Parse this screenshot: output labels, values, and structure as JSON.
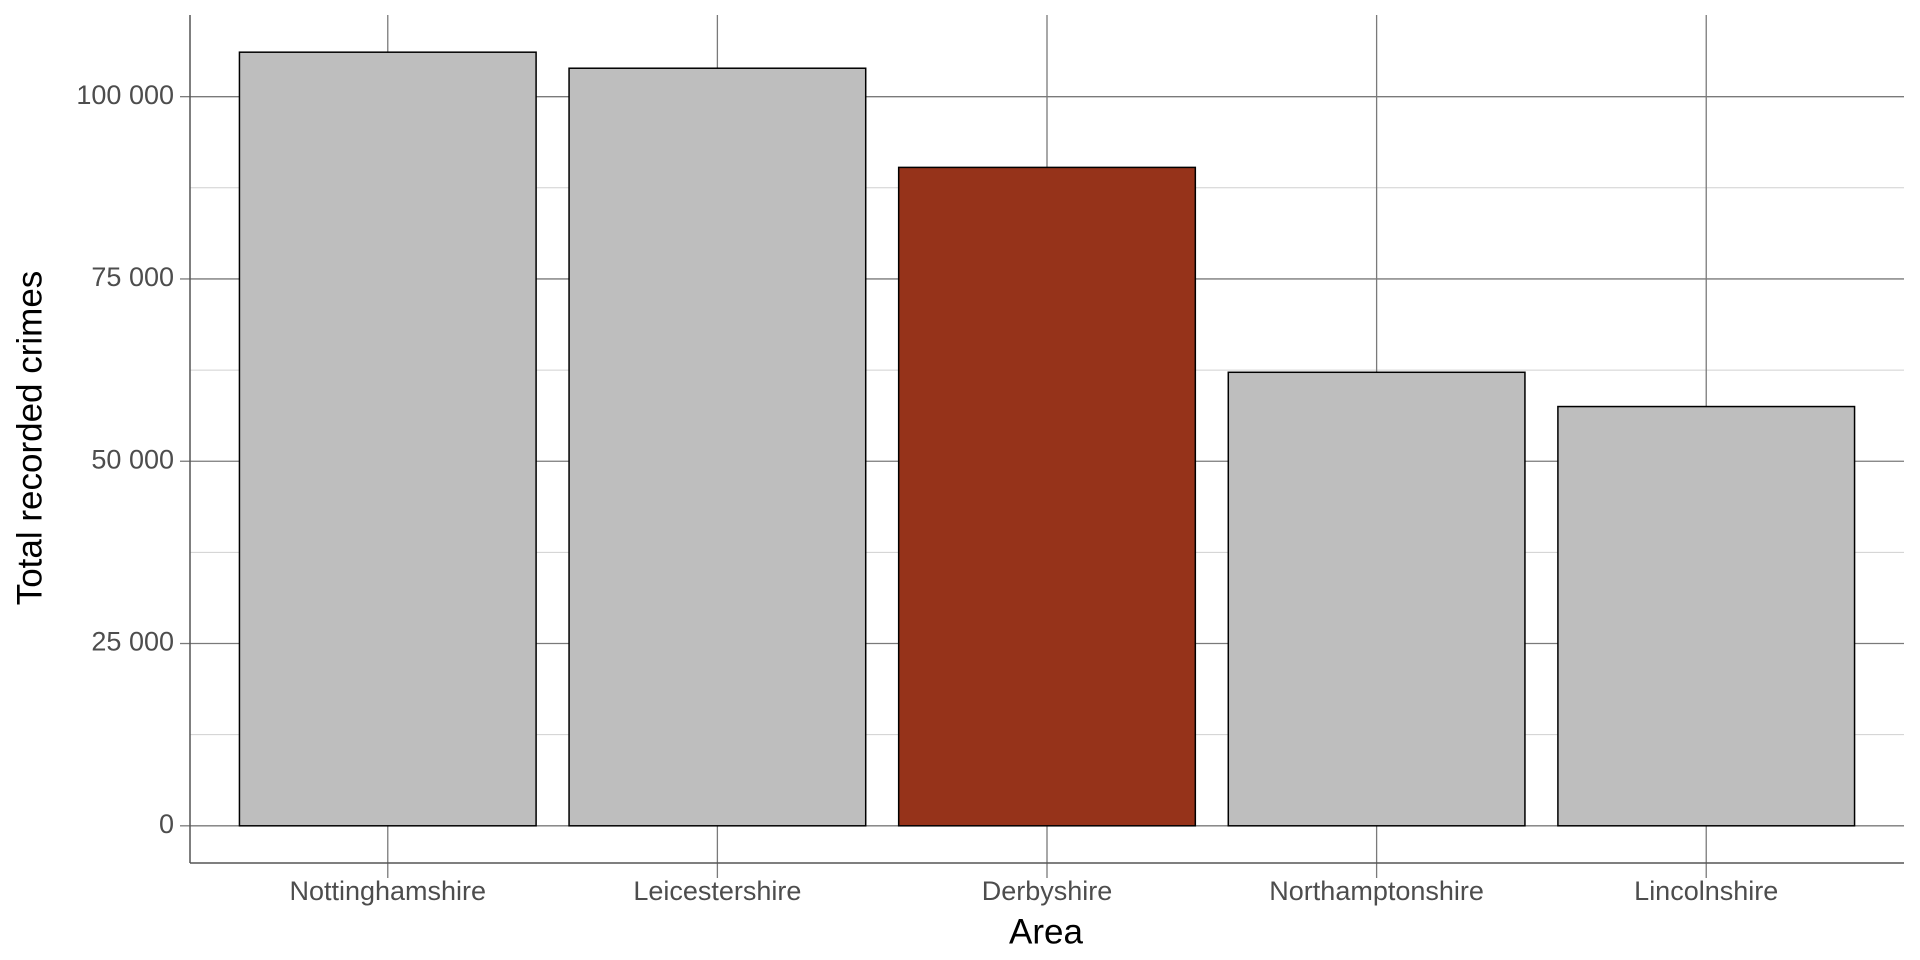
{
  "chart_data": {
    "type": "bar",
    "x_label": "Area",
    "y_label": "Total recorded crimes",
    "categories": [
      "Nottinghamshire",
      "Leicestershire",
      "Derbyshire",
      "Northamptonshire",
      "Lincolnshire"
    ],
    "values": [
      106100,
      103900,
      90300,
      62200,
      57500
    ],
    "colors": [
      "#bebebe",
      "#bebebe",
      "#96331a",
      "#bebebe",
      "#bebebe"
    ],
    "ylim": [
      -5100,
      111200
    ],
    "yticks": [
      {
        "value": 0,
        "label": "0"
      },
      {
        "value": 25000,
        "label": "25 000"
      },
      {
        "value": 50000,
        "label": "50 000"
      },
      {
        "value": 75000,
        "label": "75 000"
      },
      {
        "value": 100000,
        "label": "100 000"
      }
    ],
    "minor_yticks": [
      12500,
      37500,
      62500,
      87500
    ],
    "grid": true
  }
}
